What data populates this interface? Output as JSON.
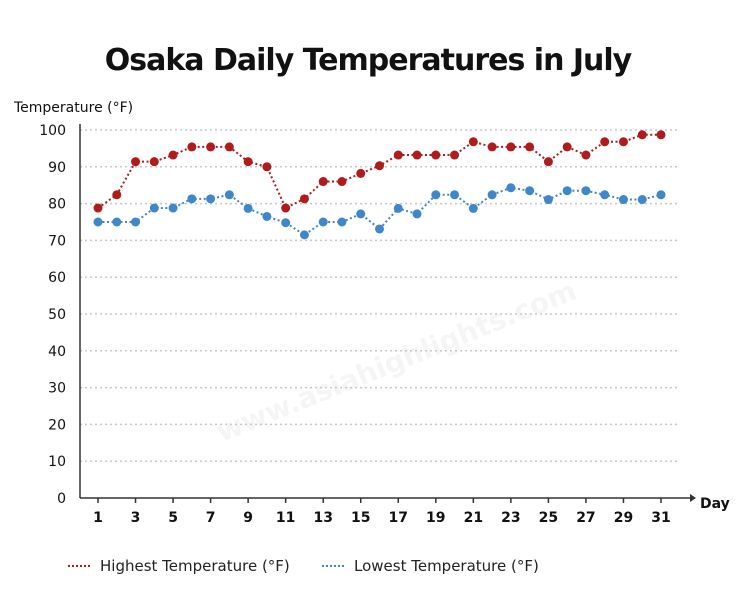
{
  "chart_data": {
    "type": "line",
    "title": "Osaka Daily Temperatures in July",
    "ylabel": "Temperature (°F)",
    "xlabel": "Day",
    "ylim": [
      0,
      100
    ],
    "xlim": [
      1,
      31
    ],
    "yticks": [
      0,
      10,
      20,
      30,
      40,
      50,
      60,
      70,
      80,
      90,
      100
    ],
    "xticks": [
      1,
      3,
      5,
      7,
      9,
      11,
      13,
      15,
      17,
      19,
      21,
      23,
      25,
      27,
      29,
      31
    ],
    "grid": "horizontal dotted",
    "legend_position": "bottom",
    "x": [
      1,
      2,
      3,
      4,
      5,
      6,
      7,
      8,
      9,
      10,
      11,
      12,
      13,
      14,
      15,
      16,
      17,
      18,
      19,
      20,
      21,
      22,
      23,
      24,
      25,
      26,
      27,
      28,
      29,
      30,
      31
    ],
    "series": [
      {
        "name": "Highest Temperature (°F)",
        "color": "#b01c1c",
        "values": [
          78.8,
          82.4,
          91.4,
          91.4,
          93.2,
          95.4,
          95.4,
          95.4,
          91.4,
          90,
          78.8,
          81.3,
          86,
          86,
          88.2,
          90.3,
          93.2,
          93.2,
          93.2,
          93.2,
          96.8,
          95.4,
          95.4,
          95.4,
          91.4,
          95.4,
          93.2,
          96.8,
          96.8,
          98.7,
          98.7
        ]
      },
      {
        "name": "Lowest Temperature (°F)",
        "color": "#3f87c8",
        "values": [
          75,
          75,
          75,
          78.8,
          78.8,
          81.3,
          81.3,
          82.4,
          78.7,
          76.5,
          74.8,
          71.5,
          75,
          75,
          77.2,
          73.1,
          78.7,
          77.2,
          82.4,
          82.4,
          78.7,
          82.4,
          84.3,
          83.5,
          81.1,
          83.5,
          83.5,
          82.4,
          81.1,
          81.1,
          82.4
        ]
      }
    ]
  },
  "watermark": "www.asiahighlights.com"
}
